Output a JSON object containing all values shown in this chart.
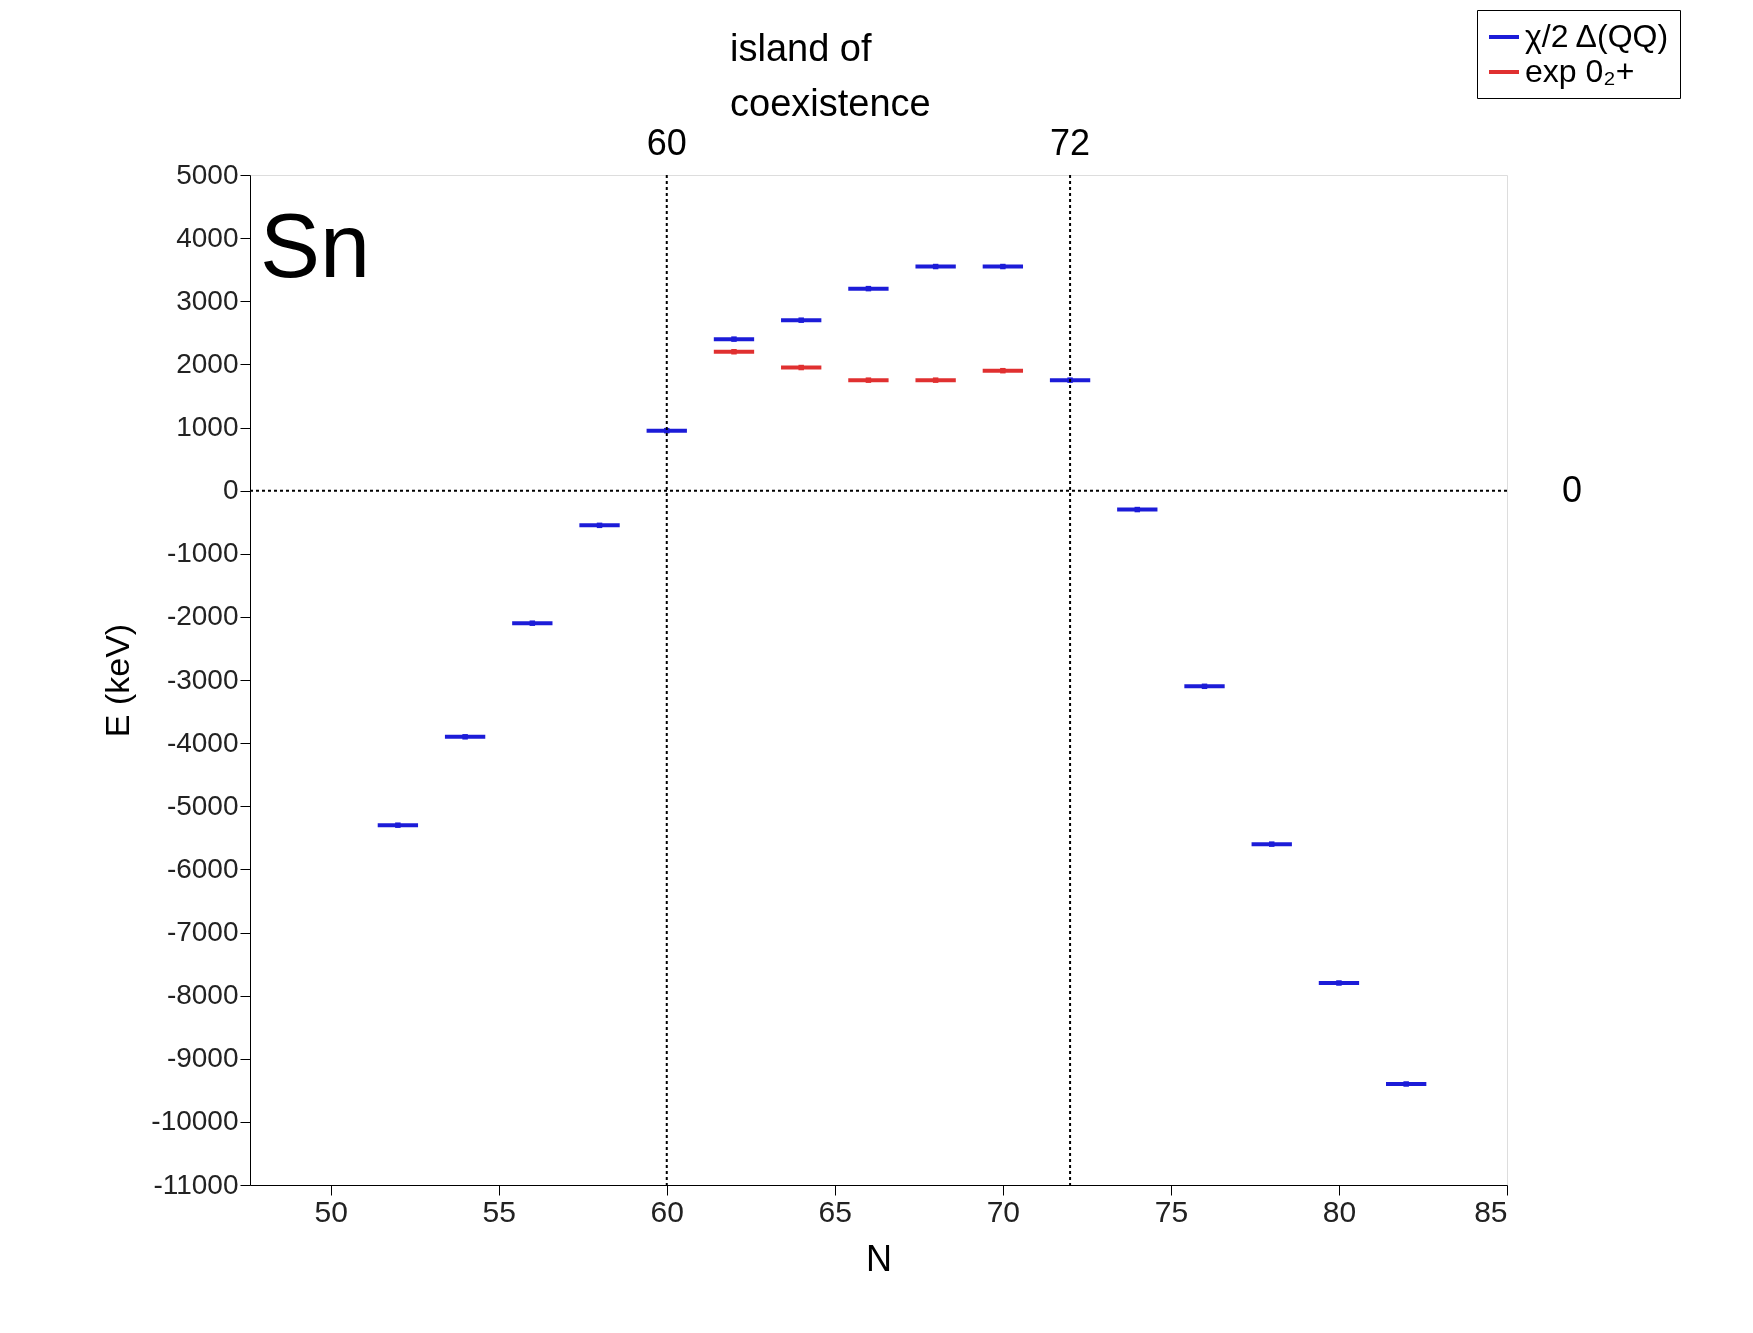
{
  "chart_data": {
    "type": "scatter",
    "xlabel": "N",
    "ylabel": "E (keV)",
    "xlim": [
      47.6,
      85
    ],
    "xticks": [
      50,
      55,
      60,
      65,
      70,
      75,
      80,
      85
    ],
    "ylim": [
      -11000,
      5000
    ],
    "yticks": [
      -11000,
      -10000,
      -9000,
      -8000,
      -7000,
      -6000,
      -5000,
      -4000,
      -3000,
      -2000,
      -1000,
      0,
      1000,
      2000,
      3000,
      4000,
      5000
    ],
    "grid": false,
    "legend": "top right",
    "marker": "square",
    "series": [
      {
        "name": "χ/2 Δ(QQ)",
        "color": "#1c1cd8",
        "x": [
          52,
          54,
          56,
          58,
          60,
          62,
          64,
          66,
          68,
          70,
          72,
          74,
          76,
          78,
          80,
          82
        ],
        "values": [
          -5300,
          -3900,
          -2100,
          -550,
          950,
          2400,
          2700,
          3200,
          3550,
          3550,
          1750,
          -300,
          -3100,
          -5600,
          -7800,
          -9400
        ],
        "xerrors": [
          0.6,
          0.6,
          0.6,
          0.6,
          0.6,
          0.6,
          0.6,
          0.6,
          0.6,
          0.6,
          0.6,
          0.6,
          0.6,
          0.6,
          0.6,
          0.6
        ]
      },
      {
        "name": "exp 0₂+",
        "color": "#e03030",
        "x": [
          62,
          64,
          66,
          68,
          70
        ],
        "values": [
          2200,
          1950,
          1750,
          1750,
          1900
        ],
        "xerrors": [
          0.6,
          0.6,
          0.6,
          0.6,
          0.6
        ]
      }
    ],
    "ref_lines": [
      {
        "axis": "x",
        "value": 60,
        "label": "60",
        "line_style": "dotted"
      },
      {
        "axis": "x",
        "value": 72,
        "label": "72",
        "line_style": "dotted"
      },
      {
        "axis": "y",
        "value": 0,
        "label": "0",
        "line_style": "dotted"
      }
    ],
    "annotations": [
      "Sn",
      "island of\ncoexistence"
    ]
  }
}
